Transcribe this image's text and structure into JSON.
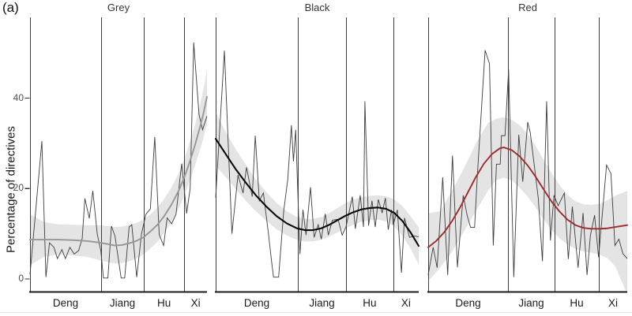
{
  "figure_label": "(a)",
  "y_axis": {
    "label": "Percentage of directives",
    "ticks": [
      "40",
      "20",
      "0"
    ],
    "tick_values": [
      40,
      20,
      0
    ]
  },
  "x_axis": {
    "era_labels": [
      "Deng",
      "Jiang",
      "Hu",
      "Xi"
    ]
  },
  "colors": {
    "raw_line": "#3d3d3d",
    "ribbon": "rgba(0,0,0,0.105)",
    "era_line": "#3c3c3c",
    "axis_line": "#1a1a1a",
    "grey_smooth": "#969696",
    "black_smooth": "#0a0a0a",
    "red_smooth": "#9e2b2b",
    "bottom_rule": "#e3e3e5"
  },
  "chart_data": [
    {
      "type": "line",
      "title": "Grey",
      "ylabel": "Percentage of directives",
      "xlabel": "",
      "ylim": [
        0,
        58
      ],
      "legend": "none",
      "x_unit": "percent of panel width (time axis spanning Deng, Jiang, Hu, Xi eras)",
      "era_boundaries_pct": [
        40.2,
        64.3,
        87.1
      ],
      "smooth_color": "#969696",
      "raw_series": [
        [
          0,
          1
        ],
        [
          6.7,
          30.5
        ],
        [
          9,
          0.4
        ],
        [
          11,
          8
        ],
        [
          13.5,
          7
        ],
        [
          15.5,
          4.5
        ],
        [
          18,
          6.5
        ],
        [
          20,
          4.5
        ],
        [
          22.5,
          7
        ],
        [
          25,
          5.5
        ],
        [
          27.5,
          6.3
        ],
        [
          29.5,
          9
        ],
        [
          31,
          17.8
        ],
        [
          33.5,
          13.4
        ],
        [
          35.5,
          19.5
        ],
        [
          38,
          9.9
        ],
        [
          40,
          6.3
        ],
        [
          41.5,
          0.2
        ],
        [
          44,
          0.2
        ],
        [
          46,
          11.7
        ],
        [
          48,
          9.5
        ],
        [
          51.5,
          0.2
        ],
        [
          53.5,
          0.2
        ],
        [
          56,
          11.5
        ],
        [
          57.5,
          12
        ],
        [
          60.3,
          0.4
        ],
        [
          63,
          10
        ],
        [
          65.5,
          14.3
        ],
        [
          68,
          15.5
        ],
        [
          70.5,
          31.4
        ],
        [
          73,
          9.8
        ],
        [
          75.5,
          7.4
        ],
        [
          77.5,
          13.5
        ],
        [
          80,
          12.2
        ],
        [
          82.5,
          14.3
        ],
        [
          85.7,
          25.5
        ],
        [
          88.5,
          14.5
        ],
        [
          90.5,
          20
        ],
        [
          92.5,
          52.3
        ],
        [
          95.5,
          36.4
        ],
        [
          97.5,
          33
        ],
        [
          100,
          36
        ]
      ],
      "smooth_series": [
        [
          0,
          8.7
        ],
        [
          8,
          8.7
        ],
        [
          16,
          8.7
        ],
        [
          24,
          8.6
        ],
        [
          32,
          8.4
        ],
        [
          40,
          8
        ],
        [
          44,
          7.7
        ],
        [
          48,
          7.4
        ],
        [
          52,
          7.5
        ],
        [
          56,
          7.9
        ],
        [
          60,
          8.4
        ],
        [
          64,
          9.2
        ],
        [
          68,
          10.5
        ],
        [
          72,
          12
        ],
        [
          76,
          14
        ],
        [
          80,
          16.5
        ],
        [
          84,
          19.5
        ],
        [
          87,
          22.3
        ],
        [
          90,
          25.6
        ],
        [
          93,
          29.3
        ],
        [
          96,
          33.5
        ],
        [
          98,
          36.6
        ],
        [
          100,
          40.3
        ]
      ],
      "ribbon": [
        [
          0,
          3,
          14.3
        ],
        [
          8,
          4.9,
          12.6
        ],
        [
          16,
          5.4,
          12.1
        ],
        [
          24,
          5.2,
          12
        ],
        [
          32,
          4.9,
          11.9
        ],
        [
          40,
          4.1,
          11.9
        ],
        [
          44,
          3.7,
          11.7
        ],
        [
          48,
          3.4,
          11.5
        ],
        [
          52,
          3.5,
          11.6
        ],
        [
          56,
          3.9,
          12
        ],
        [
          60,
          4.5,
          12.4
        ],
        [
          64,
          5.4,
          13.1
        ],
        [
          68,
          6.7,
          14.3
        ],
        [
          72,
          8.2,
          15.8
        ],
        [
          76,
          10.2,
          17.8
        ],
        [
          80,
          12.7,
          20.3
        ],
        [
          84,
          15.6,
          23.4
        ],
        [
          87,
          18.2,
          26.4
        ],
        [
          90,
          21.3,
          29.9
        ],
        [
          93,
          24.8,
          33.8
        ],
        [
          96,
          28.5,
          38.5
        ],
        [
          98,
          31.2,
          42
        ],
        [
          100,
          34.2,
          46.4
        ]
      ]
    },
    {
      "type": "line",
      "title": "Black",
      "ylabel": "Percentage of directives",
      "xlabel": "",
      "ylim": [
        0,
        58
      ],
      "legend": "none",
      "x_unit": "percent of panel width (time axis spanning Deng, Jiang, Hu, Xi eras)",
      "era_boundaries_pct": [
        40.5,
        64.2,
        87.5
      ],
      "smooth_color": "#0a0a0a",
      "raw_series": [
        [
          0,
          18
        ],
        [
          4.3,
          50.5
        ],
        [
          8,
          10
        ],
        [
          11,
          23
        ],
        [
          13.5,
          19
        ],
        [
          15.2,
          24.7
        ],
        [
          18,
          18.2
        ],
        [
          19.5,
          31.7
        ],
        [
          21.5,
          17.3
        ],
        [
          23.5,
          19
        ],
        [
          26,
          10
        ],
        [
          27.5,
          4
        ],
        [
          28.5,
          0.4
        ],
        [
          31,
          0.4
        ],
        [
          33.5,
          15
        ],
        [
          35.5,
          22
        ],
        [
          37.3,
          34
        ],
        [
          38.3,
          26
        ],
        [
          39.4,
          33
        ],
        [
          41.5,
          5.5
        ],
        [
          43,
          15.3
        ],
        [
          44.5,
          9.7
        ],
        [
          46.7,
          20.3
        ],
        [
          48.5,
          9.2
        ],
        [
          50.5,
          12
        ],
        [
          52,
          8.8
        ],
        [
          54,
          14.4
        ],
        [
          55.5,
          9.7
        ],
        [
          57.5,
          13
        ],
        [
          60.3,
          13.2
        ],
        [
          62.3,
          9.7
        ],
        [
          64.2,
          11.5
        ],
        [
          67.3,
          18.2
        ],
        [
          68.8,
          11.1
        ],
        [
          71.2,
          18.5
        ],
        [
          72.8,
          11.5
        ],
        [
          73.5,
          39.3
        ],
        [
          75.3,
          11.8
        ],
        [
          77,
          17.3
        ],
        [
          78.6,
          11.5
        ],
        [
          80.1,
          17.6
        ],
        [
          82,
          14.6
        ],
        [
          83.6,
          17.9
        ],
        [
          85,
          10.9
        ],
        [
          86.6,
          15.3
        ],
        [
          87.5,
          12
        ],
        [
          89.5,
          15.3
        ],
        [
          91.5,
          1.4
        ],
        [
          93,
          13.5
        ],
        [
          95.5,
          9.2
        ],
        [
          98,
          9.5
        ],
        [
          100,
          9.3
        ]
      ],
      "smooth_series": [
        [
          0,
          31
        ],
        [
          5,
          27.6
        ],
        [
          10,
          24.2
        ],
        [
          15,
          21.2
        ],
        [
          20,
          18.4
        ],
        [
          25,
          16
        ],
        [
          30,
          13.9
        ],
        [
          35,
          12.3
        ],
        [
          40,
          11.2
        ],
        [
          44,
          10.8
        ],
        [
          48,
          10.8
        ],
        [
          52,
          11.2
        ],
        [
          56,
          12
        ],
        [
          60,
          13
        ],
        [
          64,
          14
        ],
        [
          68,
          14.8
        ],
        [
          72,
          15.4
        ],
        [
          76,
          15.7
        ],
        [
          80,
          15.8
        ],
        [
          84,
          15.5
        ],
        [
          88,
          14.6
        ],
        [
          92,
          12.8
        ],
        [
          96,
          10.3
        ],
        [
          100,
          7.3
        ]
      ],
      "ribbon": [
        [
          0,
          25,
          37
        ],
        [
          5,
          22.5,
          32.5
        ],
        [
          10,
          19.8,
          28.6
        ],
        [
          15,
          17.2,
          25.2
        ],
        [
          20,
          14.9,
          21.9
        ],
        [
          25,
          12.8,
          19.2
        ],
        [
          30,
          11,
          16.8
        ],
        [
          35,
          9.6,
          15
        ],
        [
          40,
          8.7,
          13.7
        ],
        [
          44,
          8.3,
          13.3
        ],
        [
          48,
          8.3,
          13.3
        ],
        [
          52,
          8.7,
          13.7
        ],
        [
          56,
          9.4,
          14.6
        ],
        [
          60,
          10.3,
          15.7
        ],
        [
          64,
          11.2,
          16.8
        ],
        [
          68,
          12,
          17.6
        ],
        [
          72,
          12.7,
          18.1
        ],
        [
          76,
          13,
          18.4
        ],
        [
          80,
          13.1,
          18.5
        ],
        [
          84,
          12.7,
          18.3
        ],
        [
          88,
          11.6,
          17.6
        ],
        [
          92,
          9.5,
          16.1
        ],
        [
          96,
          6.7,
          13.9
        ],
        [
          100,
          3.2,
          11.4
        ]
      ]
    },
    {
      "type": "line",
      "title": "Red",
      "ylabel": "Percentage of directives",
      "xlabel": "",
      "ylim": [
        0,
        58
      ],
      "legend": "none",
      "x_unit": "percent of panel width (time axis spanning Deng, Jiang, Hu, Xi eras)",
      "era_boundaries_pct": [
        40.1,
        63.5,
        85.7
      ],
      "smooth_color": "#9e2b2b",
      "raw_series": [
        [
          0,
          0.9
        ],
        [
          2.5,
          7
        ],
        [
          4.5,
          2.5
        ],
        [
          7.3,
          22.5
        ],
        [
          9.8,
          0.9
        ],
        [
          12.2,
          27.3
        ],
        [
          14.7,
          2.6
        ],
        [
          17.6,
          18.5
        ],
        [
          19.6,
          14
        ],
        [
          21.3,
          11.4
        ],
        [
          23.3,
          11.4
        ],
        [
          24.7,
          22.9
        ],
        [
          28.6,
          50.6
        ],
        [
          30.8,
          47.6
        ],
        [
          32.7,
          7.4
        ],
        [
          34.3,
          25.4
        ],
        [
          36.2,
          25.4
        ],
        [
          36.8,
          31.7
        ],
        [
          38.6,
          31.7
        ],
        [
          40.4,
          46.3
        ],
        [
          43,
          0.4
        ],
        [
          45.5,
          31.9
        ],
        [
          47.5,
          21.5
        ],
        [
          50,
          34.7
        ],
        [
          51.3,
          32.3
        ],
        [
          55.3,
          17.9
        ],
        [
          57.4,
          3.9
        ],
        [
          59.5,
          39.3
        ],
        [
          61.4,
          8.5
        ],
        [
          63.2,
          18.5
        ],
        [
          65.3,
          16.2
        ],
        [
          68.4,
          19
        ],
        [
          70.4,
          4.4
        ],
        [
          72.4,
          16
        ],
        [
          75.3,
          2.5
        ],
        [
          77.8,
          14.6
        ],
        [
          79.8,
          0.9
        ],
        [
          81.5,
          9.7
        ],
        [
          83.6,
          14.1
        ],
        [
          85.6,
          4.8
        ],
        [
          89.6,
          25.2
        ],
        [
          91.8,
          23.3
        ],
        [
          93.8,
          7.4
        ],
        [
          95.8,
          8.8
        ],
        [
          97.8,
          5.6
        ],
        [
          100,
          4.5
        ]
      ],
      "smooth_series": [
        [
          0,
          7
        ],
        [
          4,
          8.4
        ],
        [
          8,
          10.3
        ],
        [
          12,
          12.8
        ],
        [
          16,
          15.8
        ],
        [
          20,
          19.2
        ],
        [
          24,
          22.6
        ],
        [
          28,
          25.5
        ],
        [
          32,
          27.6
        ],
        [
          36,
          28.9
        ],
        [
          38,
          29.1
        ],
        [
          42,
          28.5
        ],
        [
          46,
          27.1
        ],
        [
          50,
          25.1
        ],
        [
          54,
          22.6
        ],
        [
          58,
          19.8
        ],
        [
          62,
          17.1
        ],
        [
          66,
          14.9
        ],
        [
          70,
          13.1
        ],
        [
          74,
          11.9
        ],
        [
          78,
          11.3
        ],
        [
          82,
          11.1
        ],
        [
          86,
          11.1
        ],
        [
          90,
          11.2
        ],
        [
          94,
          11.5
        ],
        [
          100,
          11.9
        ]
      ],
      "ribbon": [
        [
          0,
          -0.5,
          14.5
        ],
        [
          6,
          2.5,
          15
        ],
        [
          12,
          6,
          19.5
        ],
        [
          18,
          10.5,
          24.5
        ],
        [
          24,
          15,
          30
        ],
        [
          30,
          19.5,
          34.5
        ],
        [
          34,
          21.8,
          35.4
        ],
        [
          38,
          22.4,
          35.8
        ],
        [
          42,
          21.8,
          35.2
        ],
        [
          46,
          20.2,
          34
        ],
        [
          50,
          18.2,
          32
        ],
        [
          54,
          15.8,
          29.4
        ],
        [
          58,
          13.2,
          26.4
        ],
        [
          62,
          10.8,
          23.4
        ],
        [
          66,
          9,
          20.8
        ],
        [
          70,
          7.6,
          18.6
        ],
        [
          74,
          6.6,
          17.2
        ],
        [
          78,
          6.1,
          16.5
        ],
        [
          82,
          5.8,
          16.4
        ],
        [
          86,
          5.4,
          16.6
        ],
        [
          90,
          4.6,
          17.4
        ],
        [
          94,
          2.8,
          18.4
        ],
        [
          100,
          -3.5,
          19.5
        ]
      ]
    }
  ]
}
